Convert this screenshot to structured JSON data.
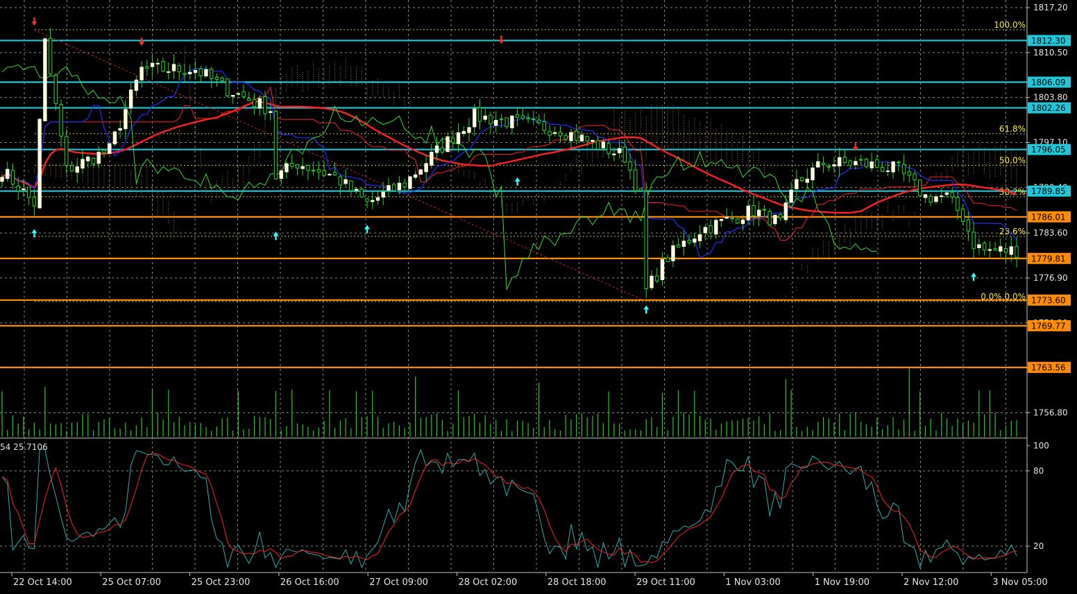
{
  "chart_data": [
    {
      "type": "candlestick",
      "title": "",
      "price_axis_ticks": [
        "1817.20",
        "1810.50",
        "1803.80",
        "1797.10",
        "1790.40",
        "1783.60",
        "1776.90",
        "1770.20",
        "1763.50",
        "1756.80"
      ],
      "ylim": [
        1754,
        1818.5
      ],
      "time_labels": [
        "22 Oct 14:00",
        "25 Oct 07:00",
        "25 Oct 23:00",
        "26 Oct 16:00",
        "27 Oct 09:00",
        "28 Oct 02:00",
        "28 Oct 18:00",
        "29 Oct 11:00",
        "1 Nov 03:00",
        "1 Nov 19:00",
        "2 Nov 12:00",
        "3 Nov 05:00"
      ],
      "horizontal_levels": [
        {
          "label": "1812.30",
          "value": 1812.3,
          "color": "#1ec8d8"
        },
        {
          "label": "1806.09",
          "value": 1806.09,
          "color": "#1ec8d8"
        },
        {
          "label": "1802.26",
          "value": 1802.26,
          "color": "#1ec8d8"
        },
        {
          "label": "1796.05",
          "value": 1796.05,
          "color": "#1ec8d8"
        },
        {
          "label": "1789.85",
          "value": 1789.85,
          "color": "#1ec8d8"
        },
        {
          "label": "1786.01",
          "value": 1786.01,
          "color": "#ff8c00"
        },
        {
          "label": "1779.81",
          "value": 1779.81,
          "color": "#ff8c00"
        },
        {
          "label": "1773.60",
          "value": 1773.6,
          "color": "#ff8c00"
        },
        {
          "label": "1769.77",
          "value": 1769.77,
          "color": "#ff8c00"
        },
        {
          "label": "1763.56",
          "value": 1763.56,
          "color": "#ff8c00"
        }
      ],
      "fibonacci_levels": [
        {
          "label": "100.0%",
          "value": 1813.9
        },
        {
          "label": "61.8%",
          "value": 1798.4
        },
        {
          "label": "50.0%",
          "value": 1793.7
        },
        {
          "label": "38.2%",
          "value": 1789.0
        },
        {
          "label": "23.6%",
          "value": 1783.1
        },
        {
          "label": "0.0%,0.0%",
          "value": 1773.4
        }
      ],
      "down_arrow_markers": [
        {
          "time_index": 6,
          "value": 1814.5
        },
        {
          "time_index": 26,
          "value": 1811.5
        },
        {
          "time_index": 93,
          "value": 1811.8
        },
        {
          "time_index": 159,
          "value": 1795.8
        }
      ],
      "up_arrow_markers": [
        {
          "time_index": 6,
          "value": 1784.2
        },
        {
          "time_index": 51,
          "value": 1783.8
        },
        {
          "time_index": 68,
          "value": 1784.8
        },
        {
          "time_index": 96,
          "value": 1791.9
        },
        {
          "time_index": 120,
          "value": 1772.8
        },
        {
          "time_index": 181,
          "value": 1777.7
        }
      ],
      "series": [
        {
          "name": "",
          "kind": "moving-average",
          "color": "#ff2020"
        },
        {
          "name": "",
          "kind": "kijun",
          "color": "#ff2020"
        },
        {
          "name": "",
          "kind": "tenkan",
          "color": "#2030ff"
        },
        {
          "name": "",
          "kind": "chikou",
          "color": "#33dd33"
        },
        {
          "name": "",
          "kind": "cloud",
          "color": "#c89664"
        }
      ],
      "volume": {
        "color": "#22cc22",
        "max": 100
      }
    },
    {
      "type": "line",
      "title": "",
      "header_text": "54 25.7106",
      "ylim": [
        0,
        100
      ],
      "y_ticks": [
        "100",
        "80",
        "20"
      ],
      "series": [
        {
          "name": "",
          "color": "#2ab0b0"
        },
        {
          "name": "",
          "color": "#ff2020"
        }
      ]
    }
  ],
  "colors": {
    "background": "#000000",
    "grid": "#8a8a8a",
    "candle_up": "#ffffe0",
    "candle_down": "#ffffe0",
    "wick": "#22dd22",
    "fib_line": "#cccc44",
    "fib_text": "#ffee33",
    "trendline": "#cc2222",
    "arrow_up": "#33ffff",
    "arrow_down": "#ff2a2a"
  }
}
